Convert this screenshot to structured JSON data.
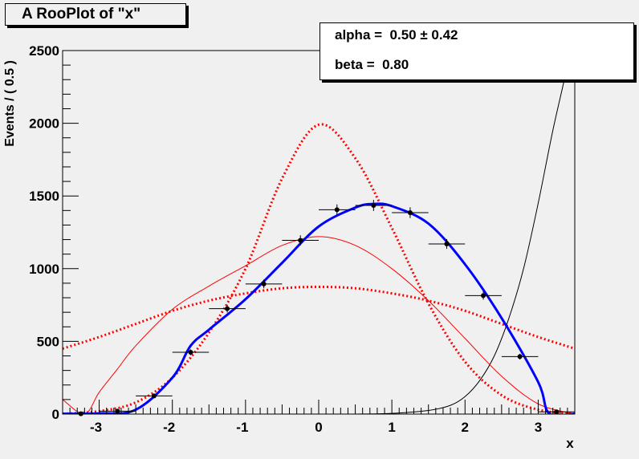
{
  "title": "A RooPlot of \"x\"",
  "stats": [
    {
      "name": "alpha",
      "value": "0.50",
      "pm": "±",
      "error": "0.42"
    },
    {
      "name": "beta",
      "value": "0.80"
    }
  ],
  "colors": {
    "frame_bg": "#f0f0f0",
    "data_points": "#000000",
    "fit_curve": "#0000ff",
    "components": "#ff0000",
    "extra_curve": "#000000"
  },
  "chart_data": {
    "type": "scatter",
    "title": "A RooPlot of \"x\"",
    "xlabel": "x",
    "ylabel": "Events / ( 0.5 )",
    "xlim": [
      -3.5,
      3.5
    ],
    "ylim": [
      0,
      2500
    ],
    "xticks": [
      -3,
      -2,
      -1,
      0,
      1,
      2,
      3
    ],
    "yticks": [
      0,
      500,
      1000,
      1500,
      2000,
      2500
    ],
    "grid": false,
    "data": {
      "x": [
        -3.25,
        -2.75,
        -2.25,
        -1.75,
        -1.25,
        -0.75,
        -0.25,
        0.25,
        0.75,
        1.25,
        1.75,
        2.25,
        2.75,
        3.25
      ],
      "y": [
        2,
        20,
        125,
        425,
        725,
        895,
        1195,
        1405,
        1435,
        1385,
        1170,
        815,
        395,
        15
      ],
      "xerr": 0.25,
      "yerr": [
        2,
        5,
        12,
        20,
        27,
        30,
        35,
        37,
        38,
        37,
        34,
        28,
        20,
        4
      ]
    },
    "series": [
      {
        "style": "solid-thick",
        "color": "#0000ff",
        "x": [
          -3.5,
          -3.0,
          -2.5,
          -2.0,
          -1.75,
          -1.5,
          -1.0,
          -0.5,
          0.0,
          0.5,
          0.75,
          1.0,
          1.5,
          2.0,
          2.5,
          3.0,
          3.15,
          3.5
        ],
        "y": [
          2,
          5,
          30,
          250,
          470,
          580,
          790,
          1040,
          1290,
          1420,
          1445,
          1430,
          1310,
          1030,
          660,
          220,
          5,
          2
        ]
      },
      {
        "style": "dotted",
        "color": "#ff0000",
        "x": [
          -3.5,
          -3.0,
          -2.5,
          -2.0,
          -1.5,
          -1.0,
          -0.5,
          0.0,
          0.5,
          1.0,
          1.5,
          2.0,
          2.5,
          3.0,
          3.5
        ],
        "y": [
          2,
          20,
          80,
          250,
          560,
          1000,
          1620,
          1990,
          1760,
          1280,
          760,
          360,
          130,
          30,
          2
        ]
      },
      {
        "style": "dotted",
        "color": "#ff0000",
        "x": [
          -3.5,
          -3.0,
          -2.5,
          -2.0,
          -1.5,
          -1.0,
          -0.5,
          0.0,
          0.5,
          1.0,
          1.5,
          2.0,
          2.5,
          3.0,
          3.5
        ],
        "y": [
          450,
          530,
          620,
          710,
          780,
          830,
          865,
          875,
          865,
          830,
          780,
          710,
          620,
          530,
          450
        ]
      },
      {
        "style": "solid-thin",
        "color": "#ff0000",
        "x": [
          -3.5,
          -3.2,
          -3.0,
          -2.75,
          -2.5,
          -2.0,
          -1.5,
          -1.0,
          -0.5,
          0.0,
          0.5,
          1.0,
          1.5,
          2.0,
          2.5,
          3.0,
          3.5
        ],
        "y": [
          100,
          0,
          150,
          310,
          470,
          720,
          880,
          1020,
          1160,
          1220,
          1160,
          1000,
          780,
          520,
          260,
          70,
          0
        ]
      },
      {
        "style": "solid-thin",
        "color": "#000000",
        "x": [
          0.5,
          1.0,
          1.5,
          1.8,
          2.0,
          2.2,
          2.4,
          2.6,
          2.8,
          3.0,
          3.2,
          3.4,
          3.5
        ],
        "y": [
          0,
          5,
          25,
          60,
          120,
          230,
          400,
          660,
          1000,
          1450,
          1950,
          2400,
          2700
        ]
      }
    ]
  }
}
